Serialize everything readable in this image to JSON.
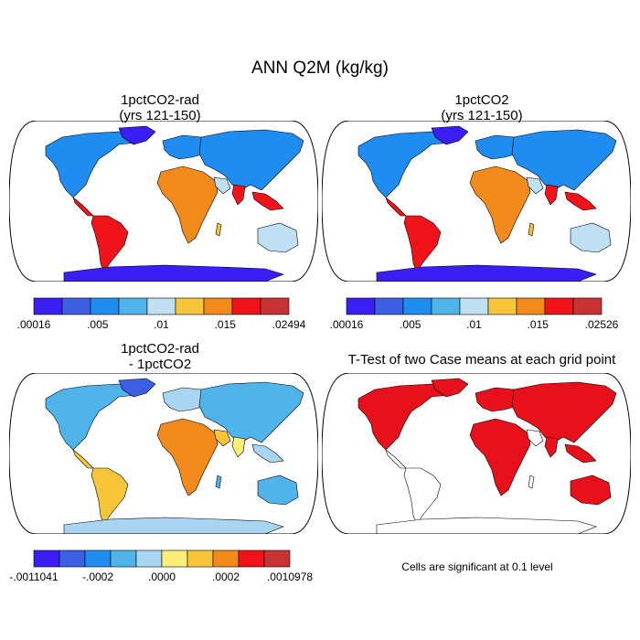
{
  "title": "ANN Q2M (kg/kg)",
  "panels": {
    "top_left": {
      "title_line1": "1pctCO2-rad",
      "title_line2": "(yrs 121-150)"
    },
    "top_right": {
      "title_line1": "1pctCO2",
      "title_line2": "(yrs 121-150)"
    },
    "bottom_left": {
      "title_line1": "1pctCO2-rad",
      "title_line2": "- 1pctCO2"
    },
    "bottom_right": {
      "title": "T-Test of two Case means at each grid point"
    }
  },
  "colorbars": {
    "top_left": {
      "colors": [
        "#3a1ef5",
        "#3c5fe3",
        "#1e8cf0",
        "#4fb4ea",
        "#bfe0f2",
        "#f6c53a",
        "#f38a1c",
        "#f0141a",
        "#c83232"
      ],
      "labels": [
        ".00016",
        ".005",
        ".01",
        ".015",
        ".02494"
      ]
    },
    "top_right": {
      "colors": [
        "#3a1ef5",
        "#3c5fe3",
        "#1e8cf0",
        "#4fb4ea",
        "#bfe0f2",
        "#f6c53a",
        "#f38a1c",
        "#f0141a",
        "#c83232"
      ],
      "labels": [
        ".00016",
        ".005",
        ".01",
        ".015",
        ".02526"
      ]
    },
    "bottom_left": {
      "colors": [
        "#3a1ef5",
        "#3c5fe3",
        "#1e8cf0",
        "#4fb4ea",
        "#a8d6f2",
        "#fbef7a",
        "#f6c53a",
        "#f38a1c",
        "#f0141a",
        "#c83232"
      ],
      "labels": [
        "-.0011041",
        "-.0002",
        ".0000",
        ".0002",
        ".0010978"
      ]
    }
  },
  "significance_color": "#e8101a",
  "footnote": "Cells are significant at 0.1 level"
}
